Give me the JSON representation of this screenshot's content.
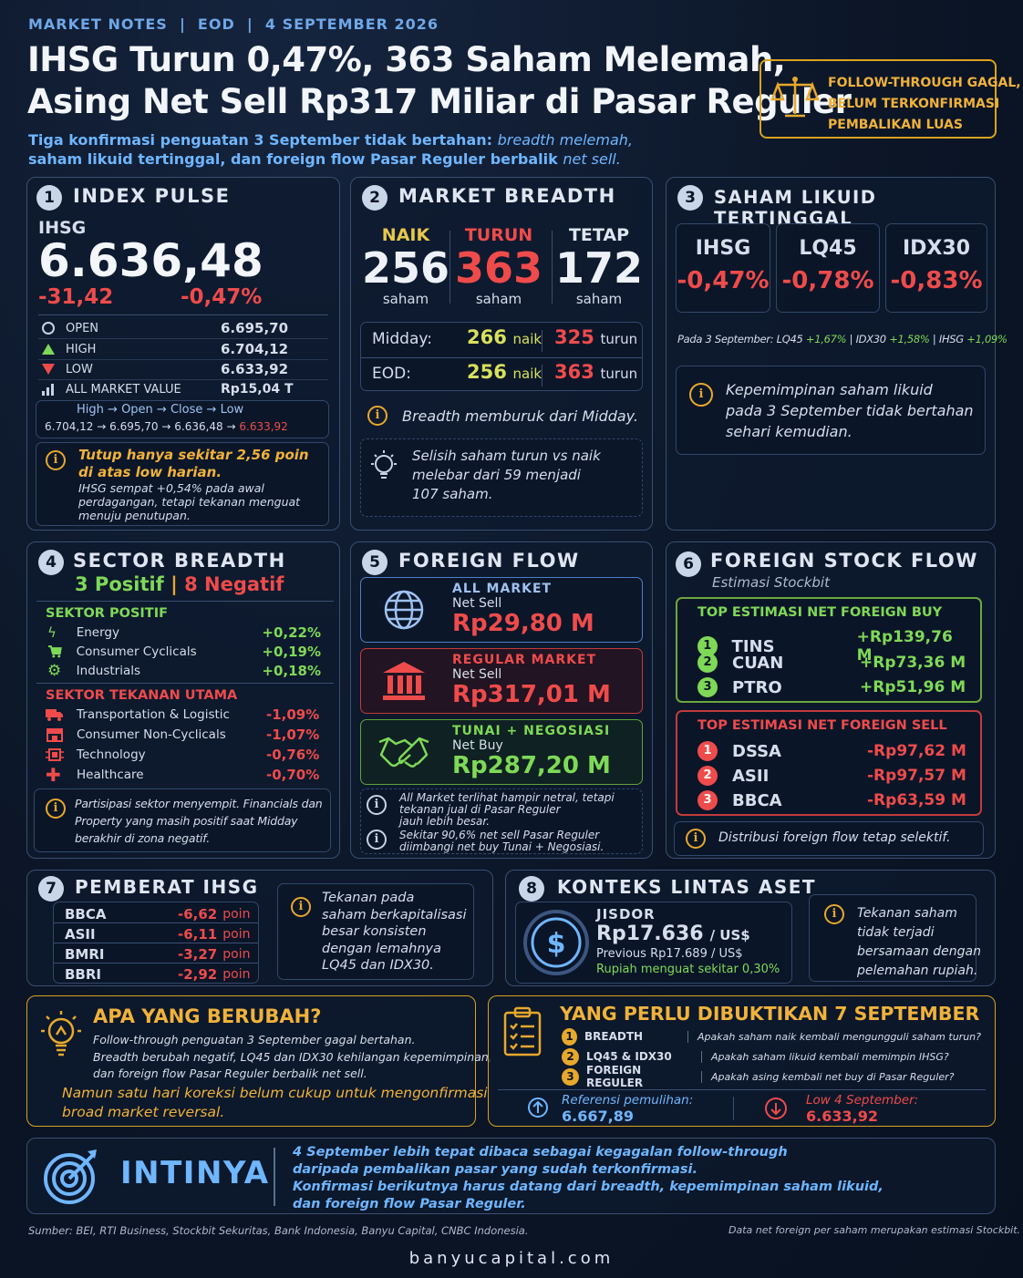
{
  "header": {
    "kicker": "MARKET NOTES  |  EOD  |  4 SEPTEMBER 2026",
    "title_line1": "IHSG Turun 0,47%, 363 Saham Melemah,",
    "title_line2": "Asing Net Sell Rp317 Miliar di Pasar Reguler",
    "sub_line1_a": "Tiga konfirmasi penguatan 3 September tidak bertahan: ",
    "sub_line1_b": "breadth melemah,",
    "sub_line2_a": "saham likuid tertinggal, dan foreign flow Pasar Reguler berbalik ",
    "sub_line2_b": "net sell.",
    "badge_line1": "FOLLOW-THROUGH GAGAL,",
    "badge_line2": "BELUM TERKONFIRMASI",
    "badge_line3": "PEMBALIKAN LUAS",
    "badge_icon": "scale-icon"
  },
  "p1": {
    "num": "1",
    "title": "INDEX PULSE",
    "label": "IHSG",
    "value": "6.636,48",
    "change_pts": "-31,42",
    "change_pct": "-0,47%",
    "rows": [
      {
        "icon": "clock-icon",
        "label": "OPEN",
        "value": "6.695,70"
      },
      {
        "icon": "triangle-up-icon",
        "label": "HIGH",
        "value": "6.704,12"
      },
      {
        "icon": "triangle-down-icon",
        "label": "LOW",
        "value": "6.633,92"
      },
      {
        "icon": "bar-chart-icon",
        "label": "ALL MARKET VALUE",
        "value": "Rp15,04 T"
      }
    ],
    "path_labels": [
      "High",
      "Open",
      "Close",
      "Low"
    ],
    "path_values": [
      "6.704,12",
      "6.695,70",
      "6.636,48",
      "6.633,92"
    ],
    "note_bold1": "Tutup hanya sekitar 2,56 poin",
    "note_bold2": "di atas low harian.",
    "note_l1": "IHSG sempat +0,54% pada awal",
    "note_l2": "perdagangan, tetapi tekanan menguat",
    "note_l3": "menuju penutupan."
  },
  "p2": {
    "num": "2",
    "title": "MARKET BREADTH",
    "naik_label": "NAIK",
    "naik": "256",
    "turun_label": "TURUN",
    "turun": "363",
    "tetap_label": "TETAP",
    "tetap": "172",
    "unit": "saham",
    "midday_label": "Midday:",
    "midday_naik": "266",
    "midday_turun": "325",
    "eod_label": "EOD:",
    "eod_naik": "256",
    "eod_turun": "363",
    "naik_word": "naik",
    "turun_word": "turun",
    "note1": "Breadth memburuk dari Midday.",
    "note2_l1": "Selisih saham turun vs naik",
    "note2_l2": "melebar dari 59 menjadi",
    "note2_l3": "107 saham."
  },
  "p3": {
    "num": "3",
    "title": "SAHAM LIKUID TERTINGGAL",
    "cards": [
      {
        "name": "IHSG",
        "value": "-0,47%"
      },
      {
        "name": "LQ45",
        "value": "-0,78%"
      },
      {
        "name": "IDX30",
        "value": "-0,83%"
      }
    ],
    "prev_a": "Pada 3 September: LQ45 ",
    "prev_b": "+1,67%",
    "prev_c": " | IDX30 ",
    "prev_d": "+1,58%",
    "prev_e": " | IHSG ",
    "prev_f": "+1,09%",
    "note_l1": "Kepemimpinan saham likuid",
    "note_l2": "pada 3 September tidak bertahan",
    "note_l3": "sehari kemudian."
  },
  "p4": {
    "num": "4",
    "title": "SECTOR BREADTH",
    "pos": "3 Positif",
    "sep": "|",
    "neg": "8 Negatif",
    "pos_head": "SEKTOR POSITIF",
    "pos_rows": [
      {
        "icon": "lightning-icon",
        "label": "Energy",
        "value": "+0,22%"
      },
      {
        "icon": "cart-icon",
        "label": "Consumer Cyclicals",
        "value": "+0,19%"
      },
      {
        "icon": "gear-icon",
        "label": "Industrials",
        "value": "+0,18%"
      }
    ],
    "neg_head": "SEKTOR TEKANAN UTAMA",
    "neg_rows": [
      {
        "icon": "truck-icon",
        "label": "Transportation & Logistic",
        "value": "-1,09%"
      },
      {
        "icon": "store-icon",
        "label": "Consumer Non-Cyclicals",
        "value": "-1,07%"
      },
      {
        "icon": "chip-icon",
        "label": "Technology",
        "value": "-0,76%"
      },
      {
        "icon": "cross-icon",
        "label": "Healthcare",
        "value": "-0,70%"
      }
    ],
    "note_l1": "Partisipasi sektor menyempit. Financials dan",
    "note_l2": "Property yang masih positif saat Midday",
    "note_l3": "berakhir di zona negatif."
  },
  "p5": {
    "num": "5",
    "title": "FOREIGN FLOW",
    "boxes": [
      {
        "icon": "globe-icon",
        "head": "ALL MARKET",
        "sub": "Net Sell",
        "value": "Rp29,80 M"
      },
      {
        "icon": "bank-icon",
        "head": "REGULAR MARKET",
        "sub": "Net Sell",
        "value": "Rp317,01 M"
      },
      {
        "icon": "handshake-icon",
        "head": "TUNAI + NEGOSIASI",
        "sub": "Net Buy",
        "value": "Rp287,20 M"
      }
    ],
    "note1_l1": "All Market terlihat hampir netral, tetapi",
    "note1_l2": "tekanan jual di Pasar Reguler",
    "note1_l3": "jauh lebih besar.",
    "note2_l1": "Sekitar 90,6% net sell Pasar Reguler",
    "note2_l2": "diimbangi net buy Tunai + Negosiasi."
  },
  "p6": {
    "num": "6",
    "title": "FOREIGN STOCK FLOW",
    "subtitle": "Estimasi Stockbit",
    "buy_head": "TOP ESTIMASI NET FOREIGN BUY",
    "buy": [
      {
        "rank": "1",
        "ticker": "TINS",
        "value": "+Rp139,76 M"
      },
      {
        "rank": "2",
        "ticker": "CUAN",
        "value": "+Rp73,36 M"
      },
      {
        "rank": "3",
        "ticker": "PTRO",
        "value": "+Rp51,96 M"
      }
    ],
    "sell_head": "TOP ESTIMASI NET FOREIGN SELL",
    "sell": [
      {
        "rank": "1",
        "ticker": "DSSA",
        "value": "-Rp97,62 M"
      },
      {
        "rank": "2",
        "ticker": "ASII",
        "value": "-Rp97,57 M"
      },
      {
        "rank": "3",
        "ticker": "BBCA",
        "value": "-Rp63,59 M"
      }
    ],
    "note": "Distribusi foreign flow tetap selektif."
  },
  "p7": {
    "num": "7",
    "title": "PEMBERAT IHSG",
    "rows": [
      {
        "ticker": "BBCA",
        "value": "-6,62",
        "unit": "poin"
      },
      {
        "ticker": "ASII",
        "value": "-6,11",
        "unit": "poin"
      },
      {
        "ticker": "BMRI",
        "value": "-3,27",
        "unit": "poin"
      },
      {
        "ticker": "BBRI",
        "value": "-2,92",
        "unit": "poin"
      }
    ],
    "note_l1": "Tekanan pada",
    "note_l2": "saham berkapitalisasi",
    "note_l3": "besar konsisten",
    "note_l4": "dengan lemahnya",
    "note_l5": "LQ45 dan IDX30."
  },
  "p8": {
    "num": "8",
    "title": "KONTEKS LINTAS ASET",
    "label": "JISDOR",
    "value": "Rp17.636",
    "unit": "/ US$",
    "prev": "Previous Rp17.689 / US$",
    "change": "Rupiah menguat sekitar 0,30%",
    "note_l1": "Tekanan saham",
    "note_l2": "tidak terjadi",
    "note_l3": "bersamaan dengan",
    "note_l4": "pelemahan rupiah."
  },
  "p9": {
    "title": "APA YANG BERUBAH?",
    "l1": "Follow-through penguatan 3 September gagal bertahan.",
    "l2": "Breadth berubah negatif, LQ45 dan IDX30 kehilangan kepemimpinan,",
    "l3": "dan foreign flow Pasar Reguler berbalik net sell.",
    "hl1": "Namun satu hari koreksi belum cukup untuk mengonfirmasi",
    "hl2": "broad market reversal."
  },
  "p10": {
    "title": "YANG PERLU DIBUKTIKAN 7 SEPTEMBER",
    "rows": [
      {
        "rank": "1",
        "label": "BREADTH",
        "q": "Apakah saham naik kembali mengungguli saham turun?"
      },
      {
        "rank": "2",
        "label": "LQ45 & IDX30",
        "q": "Apakah saham likuid kembali memimpin IHSG?"
      },
      {
        "rank": "3",
        "label": "FOREIGN REGULER",
        "q": "Apakah asing kembali net buy di Pasar Reguler?"
      }
    ],
    "ref_label": "Referensi pemulihan:",
    "ref_value": "6.667,89",
    "low_label": "Low 4 September:",
    "low_value": "6.633,92"
  },
  "p11": {
    "title": "INTINYA",
    "l1": "4 September lebih tepat dibaca sebagai kegagalan follow-through",
    "l2": "daripada pembalikan pasar yang sudah terkonfirmasi.",
    "l3": "Konfirmasi berikutnya harus datang dari breadth, kepemimpinan saham likuid,",
    "l4": "dan foreign flow Pasar Reguler."
  },
  "footer": {
    "source": "Sumber: BEI, RTI Business, Stockbit Sekuritas, Bank Indonesia, Banyu Capital, CNBC Indonesia.",
    "disclaimer": "Data net foreign per saham merupakan estimasi Stockbit.",
    "site": "banyucapital.com"
  },
  "colors": {
    "red": "#ef4b4b",
    "green": "#7ed957",
    "gold": "#f0b23a",
    "accent": "#6fb6ff"
  }
}
